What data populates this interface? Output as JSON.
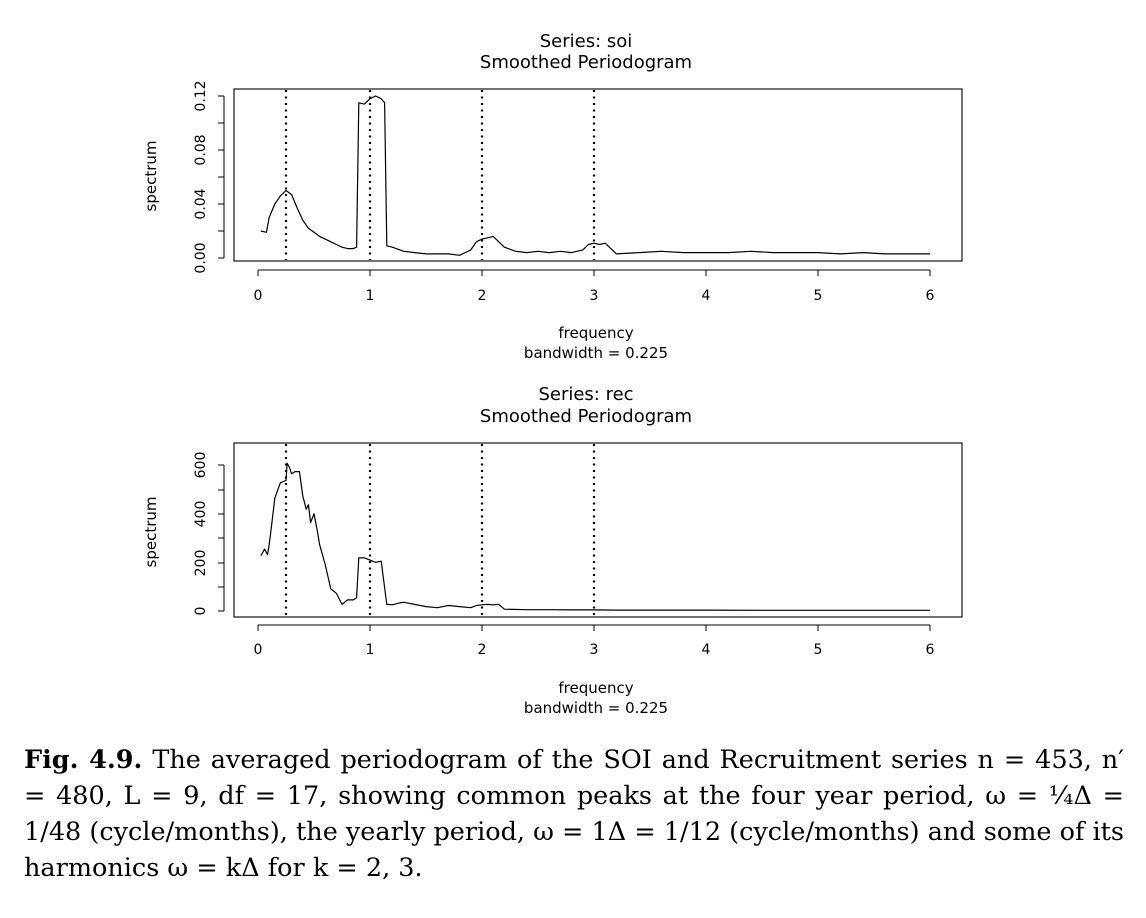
{
  "chart_data": [
    {
      "type": "line",
      "title": "Series: soi",
      "subtitle": "Smoothed Periodogram",
      "xlabel": "frequency",
      "xsublabel": "bandwidth = 0.225",
      "ylabel": "spectrum",
      "xlim": [
        0,
        6
      ],
      "ylim": [
        0,
        0.12
      ],
      "xticks": [
        "0",
        "1",
        "2",
        "3",
        "4",
        "5",
        "6"
      ],
      "yticks": [
        "0.00",
        "0.04",
        "0.08",
        "0.12"
      ],
      "vlines": [
        0.25,
        1,
        2,
        3
      ],
      "series": [
        {
          "x": [
            0.025,
            0.075,
            0.1,
            0.15,
            0.2,
            0.25,
            0.3,
            0.35,
            0.4,
            0.45,
            0.5,
            0.55,
            0.6,
            0.65,
            0.7,
            0.75,
            0.8,
            0.85,
            0.88,
            0.9,
            0.95,
            1.0,
            1.05,
            1.1,
            1.13,
            1.15,
            1.2,
            1.3,
            1.4,
            1.5,
            1.6,
            1.7,
            1.8,
            1.9,
            1.95,
            2.0,
            2.05,
            2.1,
            2.15,
            2.2,
            2.3,
            2.4,
            2.5,
            2.6,
            2.7,
            2.8,
            2.9,
            2.95,
            3.0,
            3.05,
            3.1,
            3.15,
            3.2,
            3.4,
            3.6,
            3.8,
            4.0,
            4.2,
            4.4,
            4.6,
            4.8,
            5.0,
            5.2,
            5.4,
            5.6,
            5.8,
            6.0
          ],
          "y": [
            0.02,
            0.019,
            0.03,
            0.04,
            0.046,
            0.05,
            0.047,
            0.037,
            0.028,
            0.022,
            0.019,
            0.016,
            0.014,
            0.012,
            0.01,
            0.008,
            0.007,
            0.007,
            0.008,
            0.115,
            0.114,
            0.118,
            0.12,
            0.118,
            0.115,
            0.009,
            0.008,
            0.005,
            0.004,
            0.003,
            0.003,
            0.003,
            0.002,
            0.006,
            0.012,
            0.014,
            0.015,
            0.016,
            0.012,
            0.008,
            0.005,
            0.004,
            0.005,
            0.004,
            0.005,
            0.004,
            0.006,
            0.01,
            0.011,
            0.01,
            0.011,
            0.007,
            0.003,
            0.004,
            0.005,
            0.004,
            0.004,
            0.004,
            0.005,
            0.004,
            0.004,
            0.004,
            0.003,
            0.004,
            0.003,
            0.003,
            0.003
          ]
        }
      ]
    },
    {
      "type": "line",
      "title": "Series: rec",
      "subtitle": "Smoothed Periodogram",
      "xlabel": "frequency",
      "xsublabel": "bandwidth = 0.225",
      "ylabel": "spectrum",
      "xlim": [
        0,
        6
      ],
      "ylim": [
        0,
        660
      ],
      "xticks": [
        "0",
        "1",
        "2",
        "3",
        "4",
        "5",
        "6"
      ],
      "yticks": [
        "0",
        "200",
        "400",
        "600"
      ],
      "vlines": [
        0.25,
        1,
        2,
        3
      ],
      "series": [
        {
          "x": [
            0.025,
            0.06,
            0.085,
            0.1,
            0.12,
            0.15,
            0.2,
            0.25,
            0.26,
            0.28,
            0.3,
            0.33,
            0.37,
            0.4,
            0.43,
            0.45,
            0.47,
            0.5,
            0.53,
            0.55,
            0.6,
            0.65,
            0.7,
            0.75,
            0.8,
            0.85,
            0.88,
            0.9,
            0.95,
            1.0,
            1.05,
            1.1,
            1.15,
            1.2,
            1.25,
            1.3,
            1.35,
            1.4,
            1.5,
            1.6,
            1.7,
            1.8,
            1.9,
            1.95,
            2.0,
            2.05,
            2.1,
            2.15,
            2.2,
            2.4,
            2.6,
            2.8,
            3.0,
            3.2,
            3.5,
            4.0,
            4.5,
            5.0,
            5.5,
            6.0
          ],
          "y": [
            250,
            280,
            255,
            300,
            380,
            510,
            580,
            590,
            668,
            650,
            620,
            630,
            630,
            520,
            460,
            480,
            400,
            440,
            360,
            300,
            210,
            100,
            80,
            30,
            50,
            50,
            60,
            240,
            240,
            230,
            220,
            225,
            30,
            28,
            35,
            40,
            35,
            30,
            20,
            15,
            25,
            20,
            15,
            25,
            28,
            30,
            28,
            30,
            8,
            6,
            6,
            5,
            5,
            4,
            4,
            4,
            3,
            3,
            3,
            3
          ]
        }
      ]
    }
  ],
  "caption": {
    "label": "Fig. 4.9.",
    "text": "The averaged periodogram of the SOI and Recruitment series n = 453, n′ = 480, L = 9, df = 17, showing common peaks at the four year period, ω = ¼Δ = 1/48 (cycle/months), the yearly period, ω = 1Δ = 1/12 (cycle/months) and some of its harmonics ω = kΔ for k = 2, 3."
  }
}
